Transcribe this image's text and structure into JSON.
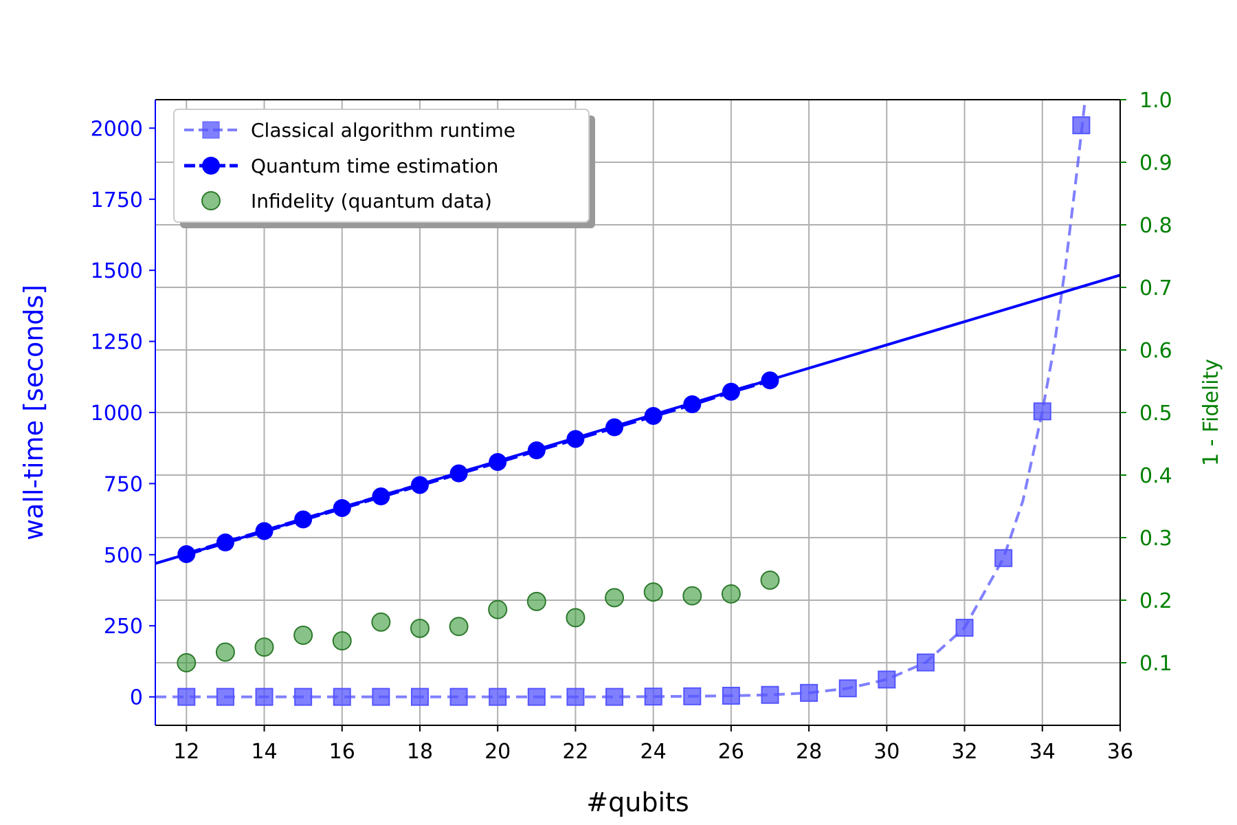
{
  "chart_data": {
    "type": "line",
    "xlabel": "#qubits",
    "ylabel": "wall-time [seconds]",
    "y2label": "1 - Fidelity",
    "xlim": [
      11.2,
      36
    ],
    "ylim": [
      -100,
      2100
    ],
    "y2lim": [
      0.0,
      1.0
    ],
    "x_ticks": [
      12,
      14,
      16,
      18,
      20,
      22,
      24,
      26,
      28,
      30,
      32,
      34,
      36
    ],
    "y_ticks": [
      0,
      250,
      500,
      750,
      1000,
      1250,
      1500,
      1750,
      2000
    ],
    "y2_ticks": [
      0.1,
      0.2,
      0.3,
      0.4,
      0.5,
      0.6,
      0.7,
      0.8,
      0.9,
      1.0
    ],
    "grid": true,
    "legend_position": "upper-left",
    "colors": {
      "classical": "#5555ff",
      "quantum": "#0000ff",
      "infidelity": "#3a9a3a",
      "left_axis": "#0000ff",
      "right_axis": "#008000"
    },
    "series": [
      {
        "name": "Classical algorithm runtime",
        "axis": "left",
        "marker": "square",
        "x": [
          12,
          13,
          14,
          15,
          16,
          17,
          18,
          19,
          20,
          21,
          22,
          23,
          24,
          25,
          26,
          27,
          28,
          29,
          30,
          31,
          32,
          33,
          34,
          35
        ],
        "values": [
          0,
          0,
          0,
          0,
          0,
          0,
          0,
          0,
          0,
          0,
          0,
          0,
          1,
          2,
          4,
          7,
          14,
          30,
          61,
          121,
          243,
          488,
          1004,
          2010
        ],
        "fit_x": [
          11.2,
          12,
          13,
          14,
          15,
          16,
          17,
          18,
          19,
          20,
          21,
          22,
          23,
          24,
          25,
          26,
          27,
          28,
          29,
          30,
          31,
          32,
          33,
          33.5,
          34,
          34.3,
          34.6,
          34.9,
          35.1
        ],
        "fit_y": [
          0,
          0,
          0,
          0,
          0,
          0,
          0,
          0,
          0,
          0,
          0,
          0,
          0,
          1,
          2,
          4,
          7,
          14,
          30,
          61,
          121,
          243,
          488,
          690,
          1004,
          1230,
          1520,
          1860,
          2100
        ]
      },
      {
        "name": "Quantum time estimation",
        "axis": "left",
        "marker": "circle",
        "x": [
          12,
          13,
          14,
          15,
          16,
          17,
          18,
          19,
          20,
          21,
          22,
          23,
          24,
          25,
          26,
          27
        ],
        "values": [
          502,
          543,
          583,
          624,
          664,
          705,
          745,
          786,
          826,
          867,
          907,
          948,
          988,
          1029,
          1073,
          1113
        ],
        "fit_x": [
          11.2,
          36
        ],
        "fit_y": [
          469,
          1483
        ]
      },
      {
        "name": "Infidelity (quantum data)",
        "axis": "right",
        "marker": "circle",
        "x": [
          12,
          13,
          14,
          15,
          16,
          17,
          18,
          19,
          20,
          21,
          22,
          23,
          24,
          25,
          26,
          27
        ],
        "values": [
          0.1,
          0.117,
          0.125,
          0.144,
          0.135,
          0.165,
          0.155,
          0.158,
          0.185,
          0.198,
          0.172,
          0.204,
          0.213,
          0.207,
          0.21,
          0.232
        ]
      }
    ]
  }
}
